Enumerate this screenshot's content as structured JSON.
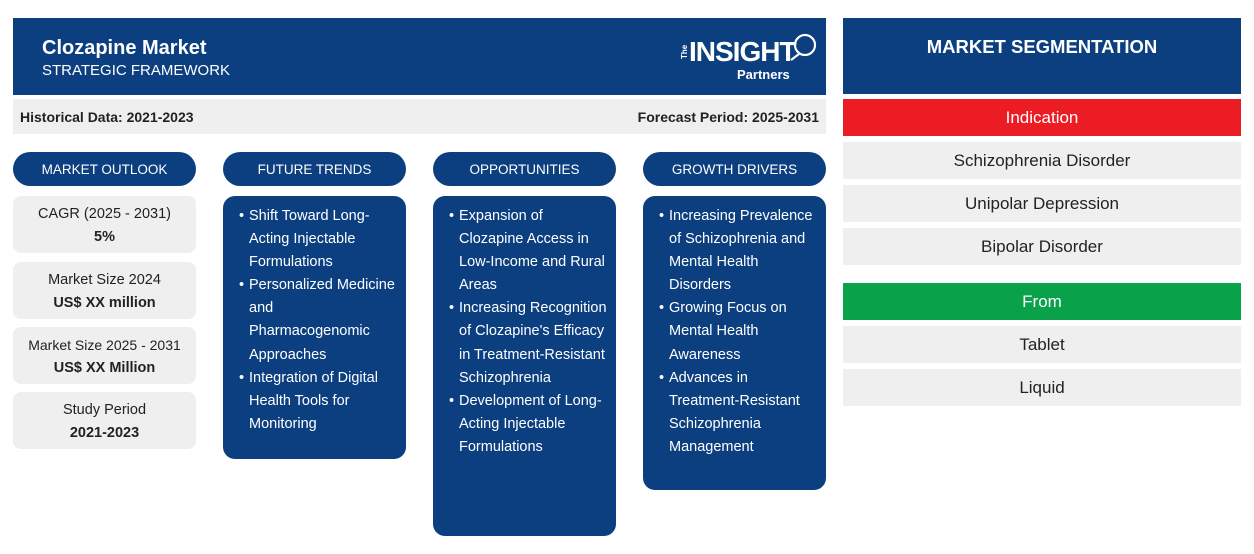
{
  "header": {
    "title": "Clozapine Market",
    "subtitle": "STRATEGIC FRAMEWORK",
    "logo": {
      "the": "The",
      "insight": "INSIGHT",
      "partners": "Partners"
    }
  },
  "periods": {
    "historical": "Historical Data: 2021-2023",
    "forecast": "Forecast Period: 2025-2031"
  },
  "columns": {
    "outlook": "MARKET OUTLOOK",
    "trends": "FUTURE TRENDS",
    "opportunities": "OPPORTUNITIES",
    "drivers": "GROWTH DRIVERS"
  },
  "outlook": [
    {
      "label": "CAGR (2025 - 2031)",
      "value": "5%"
    },
    {
      "label": "Market Size 2024",
      "value": "US$ XX million"
    },
    {
      "label": "Market Size 2025 - 2031",
      "value": "US$ XX Million"
    },
    {
      "label": "Study Period",
      "value": "2021-2023"
    }
  ],
  "trends": [
    "Shift Toward Long-Acting Injectable Formulations",
    "Personalized Medicine and Pharmacogenomic Approaches",
    "Integration of Digital Health Tools for Monitoring"
  ],
  "opportunities": [
    "Expansion of Clozapine Access in Low-Income and Rural Areas",
    "Increasing Recognition of Clozapine's Efficacy in Treatment-Resistant Schizophrenia",
    "Development of Long-Acting Injectable Formulations"
  ],
  "drivers": [
    "Increasing Prevalence of Schizophrenia and Mental Health Disorders",
    "Growing Focus on Mental Health Awareness",
    "Advances in Treatment-Resistant Schizophrenia Management"
  ],
  "segmentation": {
    "title": "MARKET SEGMENTATION",
    "groups": [
      {
        "name": "Indication",
        "color": "#ec1c24",
        "items": [
          "Schizophrenia Disorder",
          "Unipolar Depression",
          "Bipolar Disorder"
        ]
      },
      {
        "name": "From",
        "color": "#0aa14b",
        "items": [
          "Tablet",
          "Liquid"
        ]
      }
    ]
  }
}
